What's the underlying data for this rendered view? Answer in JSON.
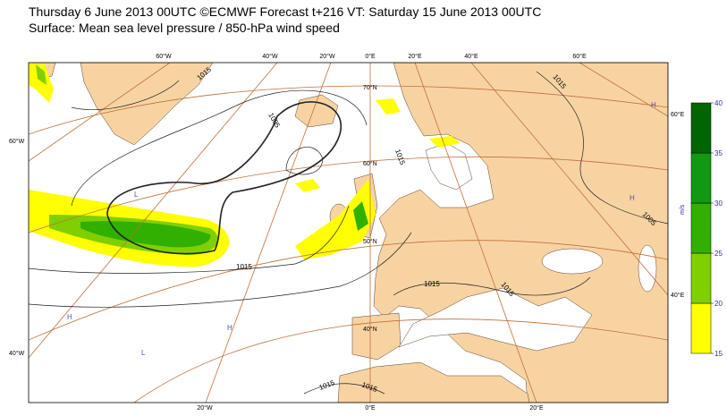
{
  "header": {
    "line1": "Thursday 6 June 2013 00UTC ©ECMWF Forecast t+216 VT: Saturday 15 June 2013 00UTC",
    "line2": "Surface: Mean sea level pressure / 850-hPa wind speed"
  },
  "map": {
    "top_labels": [
      "60°W",
      "40°W",
      "20°W",
      "0°E",
      "20°E",
      "40°E",
      "60°E"
    ],
    "left_labels": [
      "60°W",
      "40°W"
    ],
    "bottom_labels": [
      "20°W",
      "0°E",
      "20°E"
    ],
    "right_labels": [
      "60°E",
      "40°E"
    ],
    "lat_labels": [
      "70°N",
      "60°N",
      "50°N",
      "40°N"
    ],
    "isobar_labels": [
      "1015",
      "1005",
      "1015",
      "1015",
      "1015",
      "1015",
      "1015",
      "1005",
      "1015",
      "1015"
    ],
    "pressure_centers": [
      "L",
      "L",
      "H",
      "H",
      "H",
      "H"
    ]
  },
  "colorbar": {
    "unit": "m/s",
    "ticks": [
      15,
      20,
      25,
      30,
      35,
      40
    ],
    "colors": [
      "#ffff00",
      "#80d000",
      "#30b000",
      "#119911",
      "#006600"
    ]
  }
}
